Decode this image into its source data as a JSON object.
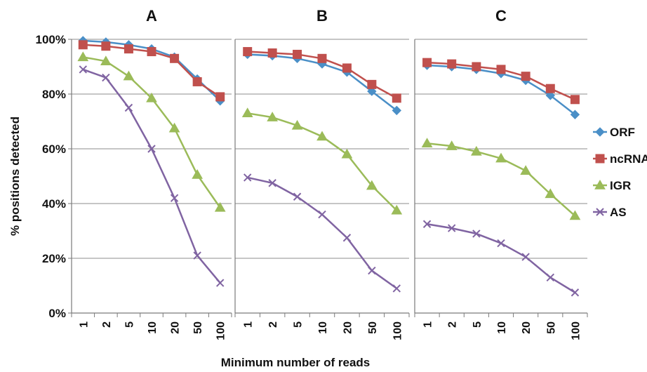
{
  "chart_data": {
    "type": "line",
    "ylabel": "% positions detected",
    "xlabel": "Minimum number of reads",
    "y_ticks": [
      "0%",
      "20%",
      "40%",
      "60%",
      "80%",
      "100%"
    ],
    "ylim": [
      0,
      100
    ],
    "categories": [
      "1",
      "2",
      "5",
      "10",
      "20",
      "50",
      "100"
    ],
    "grid": "horizontal",
    "legend_position": "right",
    "legend": [
      {
        "name": "ORF",
        "color": "#4a8fc7",
        "marker": "diamond"
      },
      {
        "name": "ncRNA",
        "color": "#c0504d",
        "marker": "square"
      },
      {
        "name": "IGR",
        "color": "#9bbb59",
        "marker": "triangle"
      },
      {
        "name": "AS",
        "color": "#8064a2",
        "marker": "x"
      }
    ],
    "panels": [
      {
        "title": "A",
        "series": [
          {
            "name": "ORF",
            "values": [
              99.5,
              99.0,
              98.0,
              96.5,
              93.5,
              85.5,
              77.5
            ]
          },
          {
            "name": "ncRNA",
            "values": [
              98.0,
              97.5,
              96.5,
              95.5,
              93.0,
              84.5,
              79.0
            ]
          },
          {
            "name": "IGR",
            "values": [
              93.5,
              92.0,
              86.5,
              78.5,
              67.5,
              50.5,
              38.5
            ]
          },
          {
            "name": "AS",
            "values": [
              89.0,
              86.0,
              75.0,
              60.0,
              42.0,
              21.0,
              11.0
            ]
          }
        ]
      },
      {
        "title": "B",
        "series": [
          {
            "name": "ORF",
            "values": [
              94.5,
              94.0,
              93.0,
              91.0,
              88.0,
              81.0,
              74.0
            ]
          },
          {
            "name": "ncRNA",
            "values": [
              95.5,
              95.0,
              94.5,
              93.0,
              89.5,
              83.5,
              78.5
            ]
          },
          {
            "name": "IGR",
            "values": [
              73.0,
              71.5,
              68.5,
              64.5,
              58.0,
              46.5,
              37.5
            ]
          },
          {
            "name": "AS",
            "values": [
              49.5,
              47.5,
              42.5,
              36.0,
              27.5,
              15.5,
              9.0
            ]
          }
        ]
      },
      {
        "title": "C",
        "series": [
          {
            "name": "ORF",
            "values": [
              90.5,
              90.0,
              89.0,
              87.5,
              85.0,
              79.5,
              72.5
            ]
          },
          {
            "name": "ncRNA",
            "values": [
              91.5,
              91.0,
              90.0,
              89.0,
              86.5,
              82.0,
              78.0
            ]
          },
          {
            "name": "IGR",
            "values": [
              62.0,
              61.0,
              59.0,
              56.5,
              52.0,
              43.5,
              35.5
            ]
          },
          {
            "name": "AS",
            "values": [
              32.5,
              31.0,
              29.0,
              25.5,
              20.5,
              13.0,
              7.5
            ]
          }
        ]
      }
    ]
  }
}
